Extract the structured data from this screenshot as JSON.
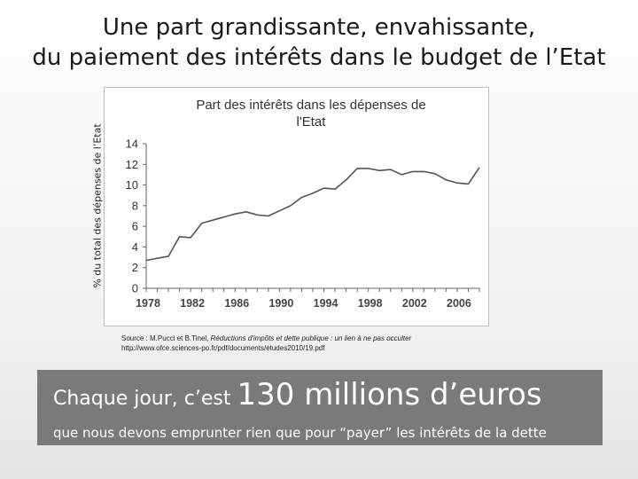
{
  "slide": {
    "title_line1": "Une part grandissante, envahissante,",
    "title_line2": "du paiement des intérêts dans le budget de l’Etat",
    "y_axis_label": "% du total des dépenses de l’Etat",
    "source_prefix": "Source : M.Pucci et B.Tinel, ",
    "source_title": "Réductions d'impôts et dette publique : un lien à ne pas occulter",
    "source_url": "http://www.ofce.sciences-po.fr/pdf/documents/etudes2010/19.pdf",
    "banner": {
      "lead": "Chaque jour, c’est ",
      "highlight": "130 millions d’euros",
      "line2": "que nous devons emprunter rien que pour “payer” les intérêts de la dette"
    }
  },
  "chart_data": {
    "type": "line",
    "title_line1": "Part des intérêts dans les dépenses de",
    "title_line2": "l'Etat",
    "x_tick_labels": [
      "1978",
      "1982",
      "1986",
      "1990",
      "1994",
      "1998",
      "2002",
      "2006"
    ],
    "y_tick_labels": [
      "0",
      "2",
      "4",
      "6",
      "8",
      "10",
      "12",
      "14"
    ],
    "xlim": [
      1978,
      2008
    ],
    "ylim": [
      0,
      14
    ],
    "grid": false,
    "legend": "none",
    "line_color": "#555555",
    "series": [
      {
        "x": [
          1978,
          1979,
          1980,
          1981,
          1982,
          1983,
          1984,
          1985,
          1986,
          1987,
          1988,
          1989,
          1990,
          1991,
          1992,
          1993,
          1994,
          1995,
          1996,
          1997,
          1998,
          1999,
          2000,
          2001,
          2002,
          2003,
          2004,
          2005,
          2006,
          2007,
          2008
        ],
        "values": [
          2.7,
          2.9,
          3.1,
          5.0,
          4.9,
          6.3,
          6.6,
          6.9,
          7.2,
          7.4,
          7.1,
          7.0,
          7.5,
          8.0,
          8.8,
          9.2,
          9.7,
          9.6,
          10.5,
          11.6,
          11.6,
          11.4,
          11.5,
          11.0,
          11.3,
          11.3,
          11.1,
          10.5,
          10.2,
          10.1,
          11.7
        ]
      }
    ]
  }
}
